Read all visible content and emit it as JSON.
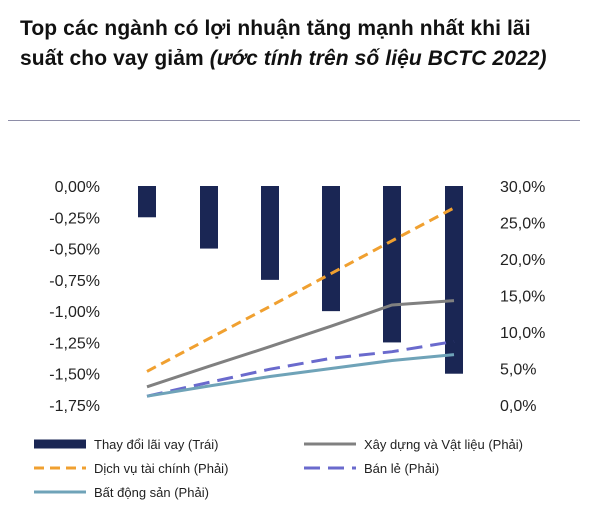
{
  "title": {
    "main": "Top các ngành có lợi nhuận tăng mạnh nhất khi lãi suất cho vay giảm ",
    "italic": "(ước tính trên số liệu BCTC 2022)"
  },
  "chart_data": {
    "type": "bar+line",
    "title": "Top các ngành có lợi nhuận tăng mạnh nhất khi lãi suất cho vay giảm (ước tính trên số liệu BCTC 2022)",
    "xlabel": "",
    "ylabel_left": "",
    "ylabel_right": "",
    "ylim_left": [
      -1.75,
      0
    ],
    "ylim_right": [
      0,
      30
    ],
    "left_ticks": [
      "0,00%",
      "-0,25%",
      "-0,50%",
      "-0,75%",
      "-1,00%",
      "-1,25%",
      "-1,50%",
      "-1,75%"
    ],
    "right_ticks": [
      "30,0%",
      "25,0%",
      "20,0%",
      "15,0%",
      "10,0%",
      "5,0%",
      "0,0%"
    ],
    "num_points": 6,
    "legend_position": "bottom",
    "bar_series": {
      "name": "Thay đổi lãi vay (Trái)",
      "axis": "left",
      "color": "#1a2654",
      "values": [
        -0.25,
        -0.5,
        -0.75,
        -1.0,
        -1.25,
        -1.5
      ]
    },
    "line_series": [
      {
        "name": "Xây dựng và Vật liệu (Phải)",
        "axis": "right",
        "color": "#808080",
        "dash": "solid",
        "values": [
          2.5,
          5.3,
          8.0,
          10.8,
          13.7,
          14.3
        ]
      },
      {
        "name": "Dịch vụ tài chính (Phải)",
        "axis": "right",
        "color": "#f0a030",
        "dash": "dash",
        "values": [
          4.6,
          9.1,
          13.5,
          18.0,
          22.5,
          27.0
        ]
      },
      {
        "name": "Bán lẻ (Phải)",
        "axis": "right",
        "color": "#6a6acd",
        "dash": "longdash",
        "values": [
          1.2,
          3.1,
          4.9,
          6.4,
          7.3,
          8.7
        ]
      },
      {
        "name": "Bất động sản (Phải)",
        "axis": "right",
        "color": "#6fa3b8",
        "dash": "solid",
        "values": [
          1.2,
          2.6,
          3.9,
          5.0,
          6.1,
          6.9
        ]
      }
    ]
  }
}
